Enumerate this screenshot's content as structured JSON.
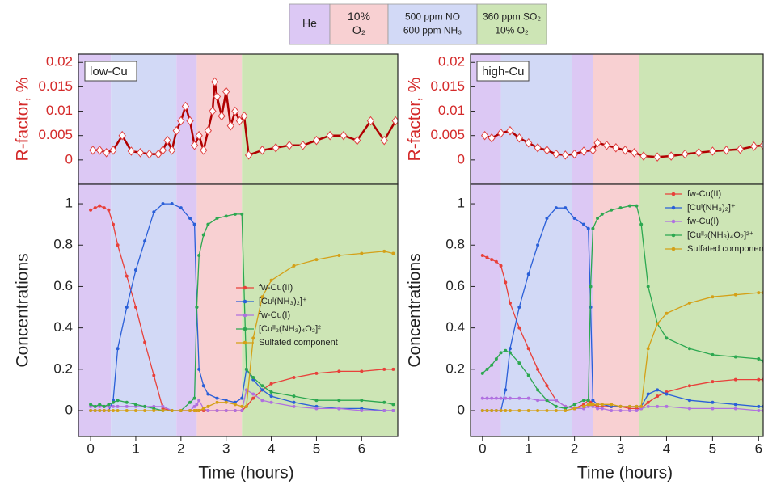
{
  "phase_key": [
    {
      "lines": [
        "He"
      ],
      "color": "#dcc8f4"
    },
    {
      "lines": [
        "10%",
        "O₂"
      ],
      "color": "#f8d0d2"
    },
    {
      "lines": [
        "500 ppm NO",
        "600 ppm NH₃"
      ],
      "color": "#d2d9f6"
    },
    {
      "lines": [
        "360 ppm SO₂",
        "10% O₂"
      ],
      "color": "#cde5b5"
    }
  ],
  "chart_data": [
    {
      "type": "line",
      "label": "low-Cu",
      "ylabel": "R-factor, %",
      "ylabel_color": "#d42a2a",
      "markers": "diamond",
      "regions": [
        {
          "from": -0.27,
          "to": 0.45,
          "color": "#dcc8f4"
        },
        {
          "from": 0.45,
          "to": 1.9,
          "color": "#d2d9f6"
        },
        {
          "from": 1.9,
          "to": 2.35,
          "color": "#dcc8f4"
        },
        {
          "from": 2.35,
          "to": 3.35,
          "color": "#f8d0d2"
        },
        {
          "from": 3.35,
          "to": 6.8,
          "color": "#cde5b5"
        }
      ],
      "xlim": [
        -0.27,
        6.8
      ],
      "ylim": [
        -0.005,
        0.0217
      ],
      "yticks": [
        0,
        0.005,
        0.01,
        0.015,
        0.02
      ],
      "x": [
        0.05,
        0.2,
        0.35,
        0.5,
        0.7,
        0.9,
        1.1,
        1.3,
        1.5,
        1.6,
        1.7,
        1.8,
        1.9,
        2.0,
        2.1,
        2.2,
        2.3,
        2.4,
        2.5,
        2.6,
        2.7,
        2.75,
        2.8,
        2.9,
        3.0,
        3.1,
        3.2,
        3.3,
        3.4,
        3.5,
        3.8,
        4.1,
        4.4,
        4.7,
        5.0,
        5.3,
        5.6,
        5.9,
        6.2,
        6.5,
        6.75
      ],
      "series": [
        {
          "color": "#b00000",
          "values": [
            0.002,
            0.002,
            0.0015,
            0.002,
            0.005,
            0.0018,
            0.0015,
            0.0012,
            0.0012,
            0.002,
            0.004,
            0.002,
            0.006,
            0.008,
            0.011,
            0.008,
            0.003,
            0.005,
            0.002,
            0.006,
            0.01,
            0.016,
            0.013,
            0.009,
            0.014,
            0.007,
            0.01,
            0.008,
            0.009,
            0.001,
            0.002,
            0.0025,
            0.003,
            0.003,
            0.004,
            0.005,
            0.005,
            0.004,
            0.008,
            0.004,
            0.008
          ]
        }
      ]
    },
    {
      "type": "line",
      "ylabel": "Concentrations",
      "xlabel": "Time (hours)",
      "markers": "circle",
      "legend": "center right",
      "regions": [
        {
          "from": -0.27,
          "to": 0.45,
          "color": "#dcc8f4"
        },
        {
          "from": 0.45,
          "to": 1.9,
          "color": "#d2d9f6"
        },
        {
          "from": 1.9,
          "to": 2.35,
          "color": "#dcc8f4"
        },
        {
          "from": 2.35,
          "to": 3.35,
          "color": "#f8d0d2"
        },
        {
          "from": 3.35,
          "to": 6.8,
          "color": "#cde5b5"
        }
      ],
      "xlim": [
        -0.27,
        6.8
      ],
      "xticks": [
        0,
        1,
        2,
        3,
        4,
        5,
        6
      ],
      "ylim": [
        -0.125,
        1.094
      ],
      "yticks": [
        0,
        0.2,
        0.4,
        0.6,
        0.8,
        1
      ],
      "x": [
        0,
        0.1,
        0.2,
        0.3,
        0.4,
        0.5,
        0.6,
        0.8,
        1.0,
        1.2,
        1.4,
        1.6,
        1.8,
        2.0,
        2.2,
        2.3,
        2.35,
        2.4,
        2.5,
        2.6,
        2.8,
        3.0,
        3.2,
        3.35,
        3.45,
        3.6,
        3.8,
        4.0,
        4.5,
        5.0,
        5.5,
        6.0,
        6.5,
        6.7
      ],
      "series": [
        {
          "name": "fw-Cu(II)",
          "color": "#e8403a",
          "values": [
            0.97,
            0.98,
            0.99,
            0.98,
            0.97,
            0.9,
            0.8,
            0.65,
            0.5,
            0.33,
            0.17,
            0.01,
            0,
            0,
            0,
            0,
            0,
            0,
            0,
            0,
            0,
            0,
            0,
            0,
            0.02,
            0.06,
            0.1,
            0.13,
            0.16,
            0.18,
            0.19,
            0.19,
            0.2,
            0.2
          ]
        },
        {
          "name": "[Cuᴵ(NH₃)₂]⁺",
          "color": "#2a5fd8",
          "values": [
            0,
            0,
            0,
            0,
            0,
            0.05,
            0.3,
            0.5,
            0.68,
            0.82,
            0.96,
            1.0,
            1.0,
            0.98,
            0.93,
            0.9,
            0.5,
            0.2,
            0.12,
            0.08,
            0.06,
            0.05,
            0.04,
            0.06,
            0.2,
            0.15,
            0.1,
            0.07,
            0.04,
            0.02,
            0.01,
            0.01,
            0,
            0
          ]
        },
        {
          "name": "fw-Cu(I)",
          "color": "#b070e0",
          "values": [
            0.02,
            0.02,
            0.02,
            0.02,
            0.02,
            0.02,
            0.02,
            0.02,
            0.02,
            0.02,
            0.02,
            0.02,
            0,
            0,
            0,
            0.02,
            0.03,
            0.05,
            0.01,
            0,
            0,
            0,
            0,
            0,
            0.1,
            0.08,
            0.05,
            0.04,
            0.02,
            0.01,
            0.01,
            0,
            0,
            0
          ]
        },
        {
          "name": "[Cuᴵᴵ₂(NH₃)₄O₂]²⁺",
          "color": "#2ca850",
          "values": [
            0.03,
            0.02,
            0.03,
            0.02,
            0.03,
            0.04,
            0.05,
            0.04,
            0.03,
            0.02,
            0.01,
            0,
            0,
            0,
            0.04,
            0.06,
            0.5,
            0.75,
            0.85,
            0.9,
            0.93,
            0.94,
            0.95,
            0.95,
            0.2,
            0.16,
            0.12,
            0.09,
            0.07,
            0.05,
            0.05,
            0.05,
            0.04,
            0.03
          ]
        },
        {
          "name": "Sulfated component",
          "color": "#d4a017",
          "values": [
            0,
            0,
            0,
            0,
            0,
            0,
            0,
            0,
            0,
            0,
            0,
            0,
            0,
            0,
            0,
            0,
            0,
            0,
            0.01,
            0.02,
            0.04,
            0.04,
            0.03,
            0.02,
            0.02,
            0.35,
            0.55,
            0.63,
            0.7,
            0.73,
            0.75,
            0.76,
            0.77,
            0.76
          ]
        }
      ]
    },
    {
      "type": "line",
      "label": "high-Cu",
      "ylabel": "R-factor, %",
      "ylabel_color": "#d42a2a",
      "markers": "diamond",
      "regions": [
        {
          "from": -0.26,
          "to": 0.4,
          "color": "#dcc8f4"
        },
        {
          "from": 0.4,
          "to": 1.95,
          "color": "#d2d9f6"
        },
        {
          "from": 1.95,
          "to": 2.4,
          "color": "#dcc8f4"
        },
        {
          "from": 2.4,
          "to": 3.4,
          "color": "#f8d0d2"
        },
        {
          "from": 3.4,
          "to": 6.1,
          "color": "#cde5b5"
        }
      ],
      "xlim": [
        -0.26,
        6.1
      ],
      "ylim": [
        -0.005,
        0.0217
      ],
      "yticks": [
        0,
        0.005,
        0.01,
        0.015,
        0.02
      ],
      "x": [
        0.05,
        0.2,
        0.4,
        0.6,
        0.8,
        1.0,
        1.2,
        1.4,
        1.6,
        1.8,
        2.0,
        2.2,
        2.4,
        2.5,
        2.7,
        2.9,
        3.1,
        3.3,
        3.5,
        3.8,
        4.1,
        4.4,
        4.7,
        5.0,
        5.3,
        5.6,
        5.9,
        6.1
      ],
      "series": [
        {
          "color": "#b00000",
          "values": [
            0.005,
            0.0045,
            0.0055,
            0.006,
            0.0045,
            0.0035,
            0.0025,
            0.002,
            0.0012,
            0.001,
            0.0012,
            0.0018,
            0.002,
            0.0035,
            0.003,
            0.0025,
            0.002,
            0.0015,
            0.0008,
            0.0006,
            0.0008,
            0.0012,
            0.0015,
            0.0018,
            0.002,
            0.0022,
            0.0028,
            0.003
          ]
        }
      ]
    },
    {
      "type": "line",
      "ylabel": "Concentrations",
      "xlabel": "Time (hours)",
      "markers": "circle",
      "legend": "upper right",
      "regions": [
        {
          "from": -0.26,
          "to": 0.4,
          "color": "#dcc8f4"
        },
        {
          "from": 0.4,
          "to": 1.95,
          "color": "#d2d9f6"
        },
        {
          "from": 1.95,
          "to": 2.4,
          "color": "#dcc8f4"
        },
        {
          "from": 2.4,
          "to": 3.4,
          "color": "#f8d0d2"
        },
        {
          "from": 3.4,
          "to": 6.1,
          "color": "#cde5b5"
        }
      ],
      "xlim": [
        -0.26,
        6.1
      ],
      "xticks": [
        0,
        1,
        2,
        3,
        4,
        5,
        6
      ],
      "ylim": [
        -0.125,
        1.094
      ],
      "yticks": [
        0,
        0.2,
        0.4,
        0.6,
        0.8,
        1
      ],
      "x": [
        0,
        0.1,
        0.2,
        0.3,
        0.4,
        0.5,
        0.6,
        0.8,
        1.0,
        1.2,
        1.4,
        1.6,
        1.8,
        2.0,
        2.2,
        2.3,
        2.35,
        2.4,
        2.5,
        2.6,
        2.8,
        3.0,
        3.2,
        3.35,
        3.45,
        3.6,
        3.8,
        4.0,
        4.5,
        5.0,
        5.5,
        6.0,
        6.1
      ],
      "series": [
        {
          "name": "fw-Cu(II)",
          "color": "#e8403a",
          "values": [
            0.75,
            0.74,
            0.73,
            0.72,
            0.7,
            0.62,
            0.52,
            0.4,
            0.3,
            0.2,
            0.12,
            0.05,
            0.02,
            0.01,
            0.03,
            0.05,
            0.04,
            0.03,
            0.02,
            0.02,
            0.02,
            0.02,
            0.01,
            0.01,
            0.01,
            0.04,
            0.07,
            0.09,
            0.12,
            0.14,
            0.15,
            0.15,
            0.15
          ]
        },
        {
          "name": "[Cuᴵ(NH₃)₂]⁺",
          "color": "#2a5fd8",
          "values": [
            0,
            0,
            0,
            0,
            0,
            0.1,
            0.3,
            0.5,
            0.66,
            0.8,
            0.93,
            0.98,
            0.98,
            0.93,
            0.9,
            0.88,
            0.5,
            0.05,
            0.03,
            0.03,
            0.02,
            0.02,
            0.02,
            0.02,
            0.02,
            0.08,
            0.1,
            0.08,
            0.05,
            0.04,
            0.03,
            0.02,
            0.02
          ]
        },
        {
          "name": "fw-Cu(I)",
          "color": "#b070e0",
          "values": [
            0.06,
            0.06,
            0.06,
            0.06,
            0.06,
            0.06,
            0.06,
            0.06,
            0.06,
            0.05,
            0.05,
            0.05,
            0.02,
            0.01,
            0.01,
            0.02,
            0.03,
            0.02,
            0.01,
            0.01,
            0,
            0,
            0,
            0,
            0.01,
            0.02,
            0.02,
            0.02,
            0.01,
            0.01,
            0.01,
            0,
            0
          ]
        },
        {
          "name": "[Cuᴵᴵ₂(NH₃)₄O₂]²⁺",
          "color": "#2ca850",
          "values": [
            0.18,
            0.2,
            0.22,
            0.25,
            0.28,
            0.29,
            0.28,
            0.23,
            0.17,
            0.1,
            0.05,
            0.02,
            0.01,
            0.03,
            0.05,
            0.05,
            0.6,
            0.88,
            0.93,
            0.95,
            0.97,
            0.98,
            0.99,
            0.99,
            0.9,
            0.6,
            0.42,
            0.35,
            0.3,
            0.27,
            0.26,
            0.25,
            0.24
          ]
        },
        {
          "name": "Sulfated component",
          "color": "#d4a017",
          "values": [
            0,
            0,
            0,
            0,
            0,
            0,
            0,
            0,
            0,
            0,
            0,
            0,
            0,
            0.01,
            0.02,
            0.03,
            0.03,
            0.03,
            0.03,
            0.03,
            0.03,
            0.02,
            0.02,
            0.02,
            0.02,
            0.3,
            0.42,
            0.47,
            0.52,
            0.55,
            0.56,
            0.57,
            0.57
          ]
        }
      ]
    }
  ]
}
